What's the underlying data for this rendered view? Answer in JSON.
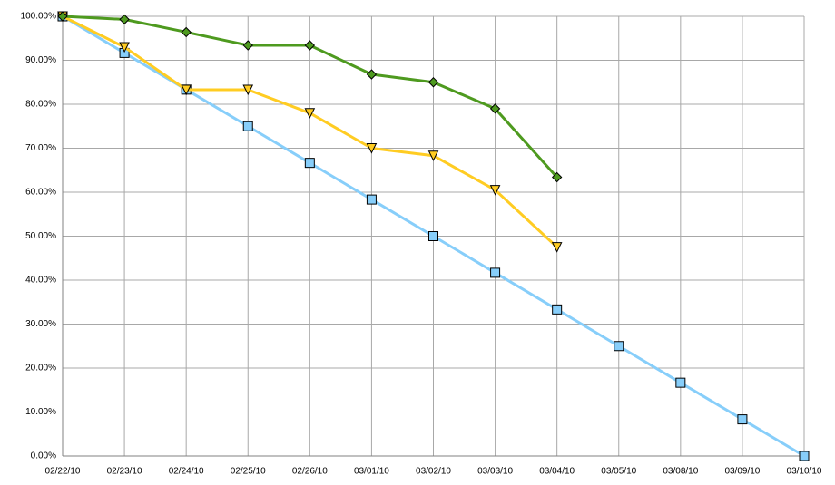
{
  "chart_data": {
    "type": "line",
    "categories": [
      "02/22/10",
      "02/23/10",
      "02/24/10",
      "02/25/10",
      "02/26/10",
      "03/01/10",
      "03/02/10",
      "03/03/10",
      "03/04/10",
      "03/05/10",
      "03/08/10",
      "03/09/10",
      "03/10/10"
    ],
    "series": [
      {
        "color": "#87cefa",
        "marker": "square",
        "values": [
          100,
          91.67,
          83.33,
          75,
          66.67,
          58.33,
          50,
          41.67,
          33.33,
          25,
          16.67,
          8.33,
          0
        ]
      },
      {
        "color": "#ffcc22",
        "marker": "triangle-down",
        "values": [
          100,
          93,
          83.3,
          83.3,
          78,
          70,
          68.3,
          60.5,
          47.5,
          null,
          null,
          null,
          null
        ]
      },
      {
        "color": "#4e9a1f",
        "marker": "diamond",
        "values": [
          100,
          99.3,
          96.4,
          93.4,
          93.4,
          86.8,
          85,
          79,
          63.4,
          null,
          null,
          null,
          null
        ]
      }
    ],
    "ylim": [
      0,
      100
    ],
    "yticks": [
      {
        "value": 0,
        "label": "0.00%"
      },
      {
        "value": 10,
        "label": "10.00%"
      },
      {
        "value": 20,
        "label": "20.00%"
      },
      {
        "value": 30,
        "label": "30.00%"
      },
      {
        "value": 40,
        "label": "40.00%"
      },
      {
        "value": 50,
        "label": "50.00%"
      },
      {
        "value": 60,
        "label": "60.00%"
      },
      {
        "value": 70,
        "label": "70.00%"
      },
      {
        "value": 80,
        "label": "80.00%"
      },
      {
        "value": 90,
        "label": "90.00%"
      },
      {
        "value": 100,
        "label": "100.00%"
      }
    ],
    "grid": true
  }
}
